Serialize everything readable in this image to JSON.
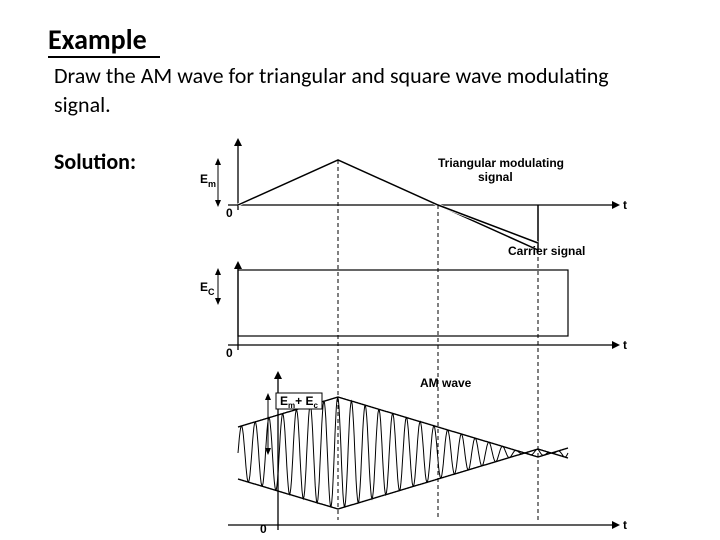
{
  "heading": "Example",
  "problem": "Draw the AM wave for triangular and square wave modulating signal.",
  "solution_label": "Solution:",
  "labels": {
    "triangular": "Triangular modulating",
    "triangular2": "signal",
    "carrier": "Carrier signal",
    "am": "AM wave",
    "t": "t",
    "zero": "0",
    "Em": "E",
    "Em_sub": "m",
    "Ec": "E",
    "Ec_sub": "C",
    "sum": "E",
    "sum_sub1": "m",
    "sum_plus": "+ E",
    "sum_sub2": "c"
  },
  "style": {
    "bg": "#ffffff",
    "stroke": "#000000",
    "stroke_width": 1.3,
    "dash": "4,3",
    "carrier_cycles": 24,
    "am_cycles": 24
  }
}
